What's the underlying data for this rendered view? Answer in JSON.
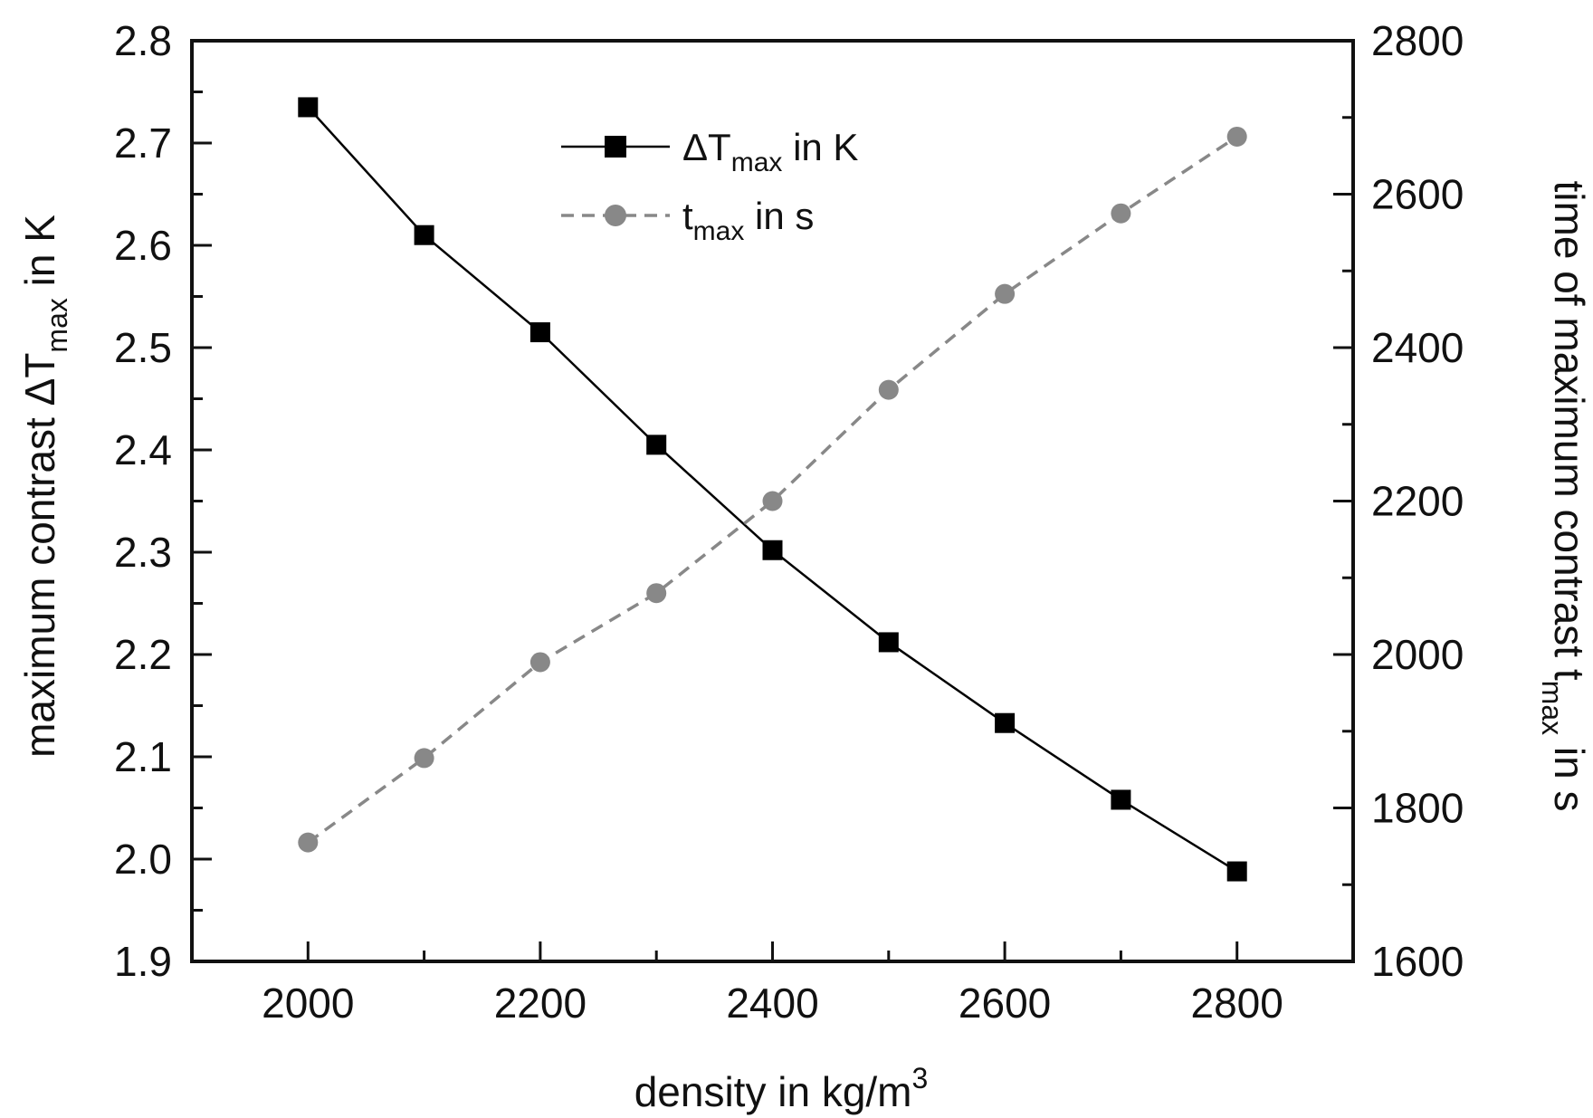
{
  "chart_data": {
    "type": "line",
    "xlabel": {
      "text": "density in kg/m",
      "sup": "3"
    },
    "ylabel_left": {
      "pre": "maximum contrast ΔT",
      "sub": "max",
      "post": " in K"
    },
    "ylabel_right": {
      "pre": "time of maximum contrast t",
      "sub": "max",
      "post": " in s"
    },
    "xlim": [
      1900,
      2900
    ],
    "ylim_left": [
      1.9,
      2.8
    ],
    "ylim_right": [
      1600,
      2800
    ],
    "x_ticks": [
      2000,
      2200,
      2400,
      2600,
      2800
    ],
    "y_left_ticks": [
      "1.9",
      "2.0",
      "2.1",
      "2.2",
      "2.3",
      "2.4",
      "2.5",
      "2.6",
      "2.7",
      "2.8"
    ],
    "y_right_ticks": [
      "1600",
      "1800",
      "2000",
      "2200",
      "2400",
      "2600",
      "2800"
    ],
    "x": [
      2000,
      2100,
      2200,
      2300,
      2400,
      2500,
      2600,
      2700,
      2800
    ],
    "series": [
      {
        "legend_main": "ΔT",
        "legend_sub": "max",
        "legend_post": " in K",
        "axis": "left",
        "color": "#000000",
        "line_style": "solid",
        "marker": "square",
        "values": [
          2.735,
          2.61,
          2.515,
          2.405,
          2.302,
          2.212,
          2.133,
          2.058,
          1.988
        ]
      },
      {
        "legend_main": "t",
        "legend_sub": "max",
        "legend_post": " in s",
        "axis": "right",
        "color": "#888888",
        "line_style": "dashed",
        "marker": "circle",
        "values": [
          1755,
          1865,
          1990,
          2080,
          2200,
          2345,
          2470,
          2575,
          2675
        ]
      }
    ],
    "legend_position": "top-center",
    "grid": false
  }
}
